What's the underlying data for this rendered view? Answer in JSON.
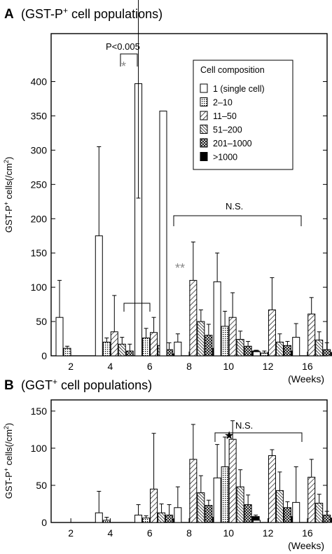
{
  "patterns": {
    "single": "white",
    "2-10": "dots",
    "11-50": "diag",
    "51-200": "diag-dense",
    "201-1000": "cross",
    ">1000": "black"
  },
  "chart_data": [
    {
      "panel_letter": "A",
      "title": "(GST-P",
      "title_sup": "+",
      "title_rest": " cell populations)",
      "type": "bar",
      "ylabel": "GST-P",
      "ylabel_sup": "+",
      "ylabel_rest": " cells(/cm",
      "ylabel_sup2": "2",
      "ylabel_end": ")",
      "xlabel": "(Weeks)",
      "ylim": [
        0,
        470
      ],
      "yticks": [
        0,
        50,
        100,
        150,
        200,
        250,
        300,
        350,
        400
      ],
      "categories": [
        "2",
        "4",
        "6",
        "8",
        "10",
        "12",
        "16"
      ],
      "legend": {
        "title": "Cell composition",
        "position": "top-right",
        "entries": [
          "1 (single cell)",
          "2–10",
          "11–50",
          "51–200",
          "201–1000",
          ">1000"
        ]
      },
      "series": [
        {
          "name": "1 (single cell)",
          "values": [
            56,
            175,
            397,
            20,
            108,
            6,
            27
          ],
          "errors": [
            54,
            130,
            167,
            12,
            42,
            2,
            20
          ],
          "err_minus": [
            0,
            0,
            167,
            0,
            0,
            0,
            0
          ]
        },
        {
          "name": "2–10",
          "values": [
            11,
            20,
            26,
            0,
            43,
            4,
            0
          ],
          "errors": [
            3,
            6,
            14,
            0,
            22,
            3,
            0
          ]
        },
        {
          "name": "11–50",
          "values": [
            0,
            35,
            34,
            110,
            56,
            67,
            61
          ],
          "errors": [
            0,
            53,
            22,
            56,
            36,
            47,
            24
          ]
        },
        {
          "name": "51–200",
          "values": [
            0,
            17,
            15,
            50,
            24,
            20,
            23
          ],
          "errors": [
            0,
            10,
            14,
            17,
            12,
            12,
            12
          ]
        },
        {
          "name": "201–1000",
          "values": [
            0,
            7,
            9,
            30,
            14,
            15,
            9
          ],
          "errors": [
            0,
            10,
            10,
            16,
            7,
            6,
            10
          ]
        },
        {
          "name": ">1000",
          "values": [
            0,
            0,
            3,
            11,
            7,
            7,
            5
          ],
          "errors": [
            0,
            0,
            1,
            3,
            1,
            3,
            2
          ]
        }
      ],
      "extra_bar": {
        "category": "6/8",
        "value": 357
      },
      "annotations": [
        {
          "text": "P<0.005"
        },
        {
          "text": "*"
        },
        {
          "text": "N.S."
        },
        {
          "text": "**"
        }
      ]
    },
    {
      "panel_letter": "B",
      "title": "(GGT",
      "title_sup": "+",
      "title_rest": " cell populations)",
      "type": "bar",
      "ylabel": "GST-P",
      "ylabel_sup": "+",
      "ylabel_rest": " cells(/cm",
      "ylabel_sup2": "2",
      "ylabel_end": ")",
      "xlabel": "(Weeks)",
      "ylim": [
        0,
        165
      ],
      "yticks": [
        0,
        50,
        100,
        150
      ],
      "categories": [
        "2",
        "4",
        "6",
        "8",
        "10",
        "12",
        "16"
      ],
      "series": [
        {
          "name": "1 (single cell)",
          "values": [
            0,
            13,
            10,
            20,
            60,
            3,
            27
          ],
          "errors": [
            0,
            29,
            14,
            28,
            45,
            0,
            48
          ]
        },
        {
          "name": "2–10",
          "values": [
            0,
            3,
            6,
            0,
            75,
            0,
            0
          ],
          "errors": [
            0,
            4,
            3,
            0,
            40,
            0,
            0
          ]
        },
        {
          "name": "11–50",
          "values": [
            0,
            0,
            45,
            85,
            112,
            90,
            61
          ],
          "errors": [
            0,
            0,
            75,
            47,
            25,
            8,
            24
          ]
        },
        {
          "name": "51–200",
          "values": [
            0,
            0,
            13,
            40,
            48,
            43,
            26
          ],
          "errors": [
            0,
            0,
            12,
            23,
            23,
            25,
            12
          ]
        },
        {
          "name": "201–1000",
          "values": [
            0,
            0,
            10,
            23,
            24,
            20,
            10
          ],
          "errors": [
            0,
            0,
            14,
            7,
            13,
            8,
            5
          ]
        },
        {
          "name": ">1000",
          "values": [
            0,
            0,
            5,
            7,
            8,
            8,
            6
          ],
          "errors": [
            0,
            0,
            1,
            2,
            2,
            1,
            1
          ]
        }
      ],
      "annotations": [
        {
          "text": "N.S."
        },
        {
          "text": "★"
        }
      ]
    }
  ]
}
